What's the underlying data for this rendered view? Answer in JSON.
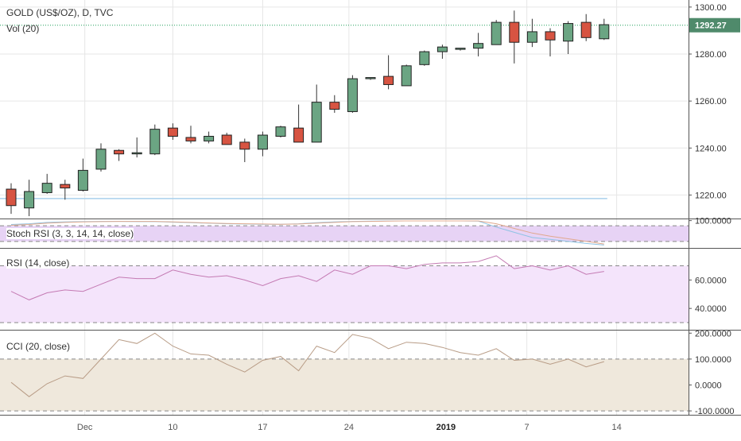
{
  "header": {
    "symbol": "GOLD (US$/OZ), D, TVC",
    "volume_label": "Vol (20)"
  },
  "colors": {
    "up": "#6ba583",
    "down": "#d75442",
    "wick": "#333333",
    "grid": "#e6e6e6",
    "last_price_line": "#20a05a",
    "last_price_badge": "#4f8a6b",
    "stoch_band": "#e7d3f5",
    "rsi_band": "#f4e4fb",
    "cci_band": "#efe8dc",
    "rsi_line": "#c47ab3",
    "cci_line": "#b89c86",
    "stoch_k": "#8fc3e4",
    "stoch_d": "#e0a88e",
    "support_line": "#a9d0ec"
  },
  "chart_data": [
    {
      "type": "candlestick",
      "title": "GOLD (US$/OZ), D, TVC",
      "y_ticks": [
        1300.0,
        1280.0,
        1260.0,
        1240.0,
        1220.0
      ],
      "y_tick_labels": [
        "1300.00",
        "1280.00",
        "1260.00",
        "1240.00",
        "1220.00"
      ],
      "ylim": [
        1210,
        1303
      ],
      "x_tick_labels": [
        "Dec",
        "10",
        "17",
        "24",
        "2019",
        "7",
        "14"
      ],
      "last_price": "1292.27",
      "horizontal_line": 1218.5,
      "candles": [
        {
          "o": 1222.5,
          "h": 1225.0,
          "l": 1212.0,
          "c": 1215.5
        },
        {
          "o": 1214.5,
          "h": 1226.5,
          "l": 1211.0,
          "c": 1221.5
        },
        {
          "o": 1221.0,
          "h": 1229.0,
          "l": 1220.5,
          "c": 1225.0
        },
        {
          "o": 1224.5,
          "h": 1226.5,
          "l": 1218.0,
          "c": 1223.0
        },
        {
          "o": 1222.0,
          "h": 1235.5,
          "l": 1221.5,
          "c": 1230.5
        },
        {
          "o": 1231.0,
          "h": 1242.0,
          "l": 1230.0,
          "c": 1239.5
        },
        {
          "o": 1239.0,
          "h": 1239.5,
          "l": 1234.5,
          "c": 1237.5
        },
        {
          "o": 1237.5,
          "h": 1244.5,
          "l": 1236.0,
          "c": 1238.0
        },
        {
          "o": 1237.5,
          "h": 1250.0,
          "l": 1237.0,
          "c": 1248.0
        },
        {
          "o": 1248.5,
          "h": 1250.5,
          "l": 1243.5,
          "c": 1245.0
        },
        {
          "o": 1244.5,
          "h": 1249.5,
          "l": 1242.0,
          "c": 1243.0
        },
        {
          "o": 1243.0,
          "h": 1247.0,
          "l": 1242.0,
          "c": 1245.0
        },
        {
          "o": 1245.5,
          "h": 1246.5,
          "l": 1241.5,
          "c": 1241.5
        },
        {
          "o": 1242.5,
          "h": 1244.0,
          "l": 1234.0,
          "c": 1239.5
        },
        {
          "o": 1239.5,
          "h": 1247.0,
          "l": 1236.5,
          "c": 1245.5
        },
        {
          "o": 1245.0,
          "h": 1249.5,
          "l": 1244.5,
          "c": 1249.0
        },
        {
          "o": 1248.5,
          "h": 1258.5,
          "l": 1242.5,
          "c": 1242.5
        },
        {
          "o": 1242.5,
          "h": 1267.0,
          "l": 1242.5,
          "c": 1259.5
        },
        {
          "o": 1259.5,
          "h": 1262.5,
          "l": 1255.0,
          "c": 1256.5
        },
        {
          "o": 1255.5,
          "h": 1271.0,
          "l": 1255.0,
          "c": 1269.5
        },
        {
          "o": 1269.5,
          "h": 1270.0,
          "l": 1269.0,
          "c": 1270.0
        },
        {
          "o": 1270.5,
          "h": 1279.5,
          "l": 1265.0,
          "c": 1267.0
        },
        {
          "o": 1266.5,
          "h": 1275.5,
          "l": 1266.5,
          "c": 1275.0
        },
        {
          "o": 1275.5,
          "h": 1281.5,
          "l": 1275.0,
          "c": 1281.0
        },
        {
          "o": 1281.0,
          "h": 1284.0,
          "l": 1278.0,
          "c": 1283.0
        },
        {
          "o": 1282.0,
          "h": 1282.5,
          "l": 1281.5,
          "c": 1282.5
        },
        {
          "o": 1282.5,
          "h": 1289.0,
          "l": 1279.0,
          "c": 1284.5
        },
        {
          "o": 1284.0,
          "h": 1294.5,
          "l": 1284.0,
          "c": 1293.5
        },
        {
          "o": 1293.5,
          "h": 1298.5,
          "l": 1276.0,
          "c": 1285.0
        },
        {
          "o": 1285.0,
          "h": 1295.0,
          "l": 1283.0,
          "c": 1289.5
        },
        {
          "o": 1289.5,
          "h": 1291.0,
          "l": 1279.0,
          "c": 1286.0
        },
        {
          "o": 1285.5,
          "h": 1294.0,
          "l": 1280.0,
          "c": 1293.0
        },
        {
          "o": 1293.5,
          "h": 1297.0,
          "l": 1285.5,
          "c": 1287.0
        },
        {
          "o": 1286.5,
          "h": 1295.0,
          "l": 1286.0,
          "c": 1292.5
        }
      ]
    },
    {
      "type": "line",
      "title": "Stoch RSI (3, 3, 14, 14, close)",
      "y_tick_labels": [
        "100.0000"
      ],
      "ylim": [
        -5,
        105
      ],
      "band": [
        20,
        80
      ],
      "series": [
        {
          "values": [
            85,
            88,
            93,
            95,
            96,
            97,
            97,
            96,
            96,
            94,
            92,
            90,
            88,
            87,
            86,
            86,
            88,
            92,
            95,
            97,
            98,
            99,
            99,
            99,
            99,
            99,
            98,
            75,
            55,
            35,
            28,
            20,
            12,
            6
          ]
        },
        {
          "values": [
            82,
            85,
            90,
            93,
            95,
            96,
            97,
            97,
            97,
            95,
            93,
            91,
            89,
            88,
            87,
            86,
            87,
            90,
            93,
            96,
            97,
            98,
            99,
            99,
            99,
            99,
            99,
            88,
            70,
            52,
            40,
            30,
            20,
            10
          ]
        }
      ]
    },
    {
      "type": "line",
      "title": "RSI (14, close)",
      "y_ticks": [
        60,
        40
      ],
      "y_tick_labels": [
        "60.0000",
        "40.0000"
      ],
      "ylim": [
        25,
        82
      ],
      "band": [
        30,
        70
      ],
      "series": [
        {
          "values": [
            52,
            46,
            51,
            53,
            52,
            57,
            62,
            61,
            61,
            67,
            64,
            62,
            63,
            60,
            56,
            61,
            63,
            59,
            67,
            64,
            70,
            70,
            68,
            71,
            72,
            72,
            73,
            77,
            68,
            70,
            67,
            70,
            64,
            66
          ]
        }
      ]
    },
    {
      "type": "line",
      "title": "CCI (20, close)",
      "y_ticks": [
        200,
        100,
        0,
        -100
      ],
      "y_tick_labels": [
        "200.0000",
        "100.0000",
        "0.0000",
        "-100.0000"
      ],
      "ylim": [
        -115,
        210
      ],
      "band": [
        -100,
        100
      ],
      "series": [
        {
          "values": [
            10,
            -45,
            5,
            35,
            25,
            100,
            175,
            160,
            200,
            150,
            120,
            115,
            80,
            50,
            95,
            110,
            55,
            150,
            125,
            195,
            180,
            140,
            165,
            160,
            145,
            125,
            115,
            140,
            95,
            100,
            80,
            100,
            70,
            90
          ]
        }
      ]
    }
  ]
}
